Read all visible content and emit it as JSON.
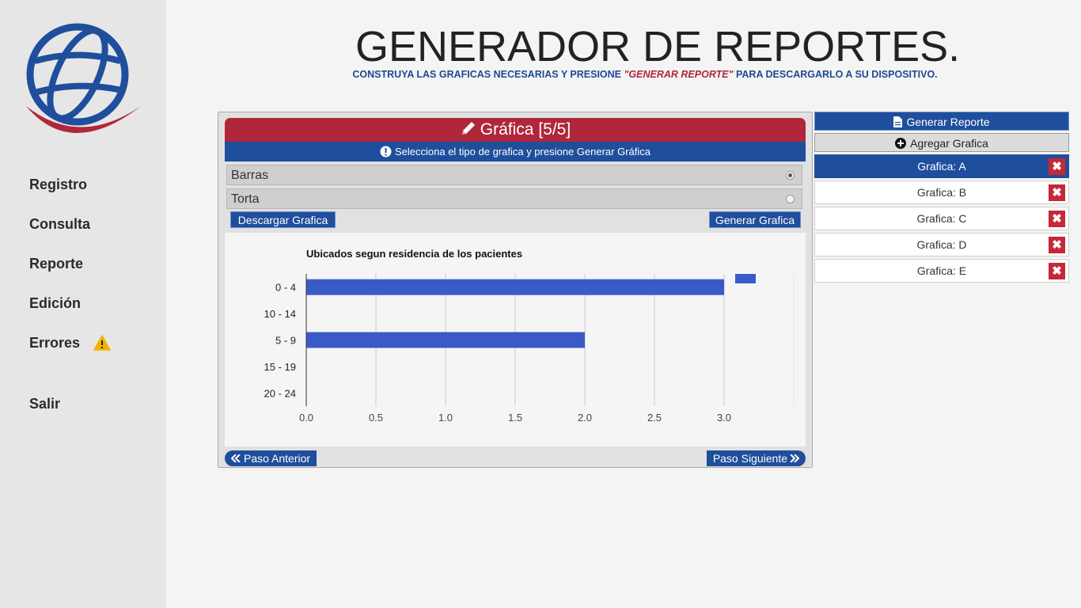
{
  "colors": {
    "brand_blue": "#1f4e9c",
    "brand_red": "#b0273a",
    "bar": "#3a5bc7",
    "warning": "#f0b400"
  },
  "sidebar": {
    "logo": "globe-logo",
    "items": [
      {
        "label": "Registro"
      },
      {
        "label": "Consulta"
      },
      {
        "label": "Reporte"
      },
      {
        "label": "Edición"
      },
      {
        "label": "Errores",
        "icon": "warning-icon"
      },
      {
        "label": "Salir"
      }
    ]
  },
  "header": {
    "title": "GENERADOR DE REPORTES.",
    "subtitle_pre": "CONSTRUYA LAS GRAFICAS NECESARIAS Y PRESIONE ",
    "subtitle_quote": "\"GENERAR REPORTE\"",
    "subtitle_post": " PARA DESCARGARLO A SU DISPOSITIVO."
  },
  "panel": {
    "title": "Gráfica [5/5]",
    "info": "Selecciona el tipo de grafica y presione Generar Gráfica",
    "options": [
      {
        "label": "Barras",
        "selected": true
      },
      {
        "label": "Torta",
        "selected": false
      }
    ],
    "download_label": "Descargar Grafica",
    "generate_label": "Generar Grafica",
    "prev_label": "Paso Anterior",
    "next_label": "Paso Siguiente"
  },
  "chart_data": {
    "type": "bar",
    "orientation": "horizontal",
    "title": "Ubicados segun residencia de los pacientes",
    "categories": [
      "0 - 4",
      "10 - 14",
      "5 - 9",
      "15 - 19",
      "20 - 24"
    ],
    "values": [
      3,
      0,
      2,
      0,
      0
    ],
    "xlim": [
      0,
      3.5
    ],
    "xticks": [
      "0.0",
      "0.5",
      "1.0",
      "1.5",
      "2.0",
      "2.5",
      "3.0"
    ],
    "xlabel": "",
    "ylabel": "",
    "legend": "top-right",
    "grid": true
  },
  "right": {
    "generate_report_label": "Generar Reporte",
    "add_chart_label": "Agregar Grafica",
    "charts": [
      {
        "label": "Grafica: A",
        "active": true
      },
      {
        "label": "Grafica: B",
        "active": false
      },
      {
        "label": "Grafica: C",
        "active": false
      },
      {
        "label": "Grafica: D",
        "active": false
      },
      {
        "label": "Grafica: E",
        "active": false
      }
    ]
  }
}
